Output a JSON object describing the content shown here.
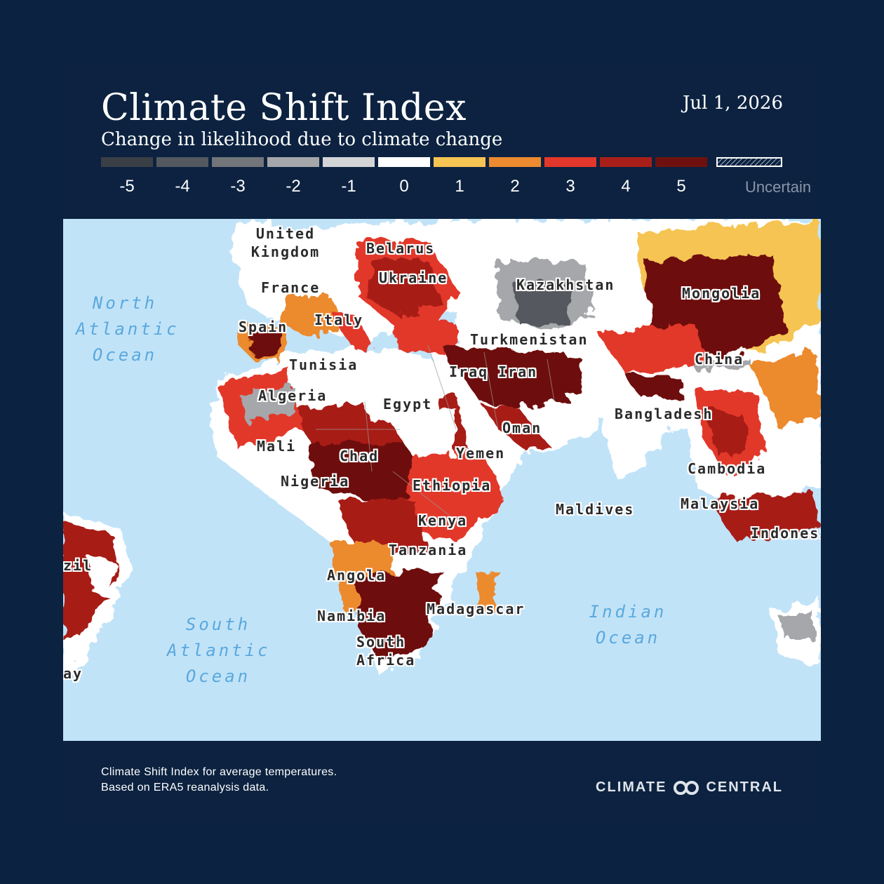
{
  "header": {
    "title": "Climate Shift Index",
    "subtitle": "Change in likelihood due to climate change",
    "date": "Jul 1, 2026"
  },
  "legend": {
    "items": [
      {
        "label": "-5",
        "color": "#3a3f46"
      },
      {
        "label": "-4",
        "color": "#54585f"
      },
      {
        "label": "-3",
        "color": "#727579"
      },
      {
        "label": "-2",
        "color": "#a5a7aa"
      },
      {
        "label": "-1",
        "color": "#d3d4d6"
      },
      {
        "label": "0",
        "color": "#ffffff"
      },
      {
        "label": "1",
        "color": "#f6c453"
      },
      {
        "label": "2",
        "color": "#ec8a2f"
      },
      {
        "label": "3",
        "color": "#e2372a"
      },
      {
        "label": "4",
        "color": "#a81f19"
      },
      {
        "label": "5",
        "color": "#6e110e"
      }
    ],
    "uncertain_label": "Uncertain"
  },
  "map": {
    "countries": [
      "United Kingdom",
      "Belarus",
      "France",
      "Ukraine",
      "Kazakhstan",
      "Mongolia",
      "Spain",
      "Italy",
      "Turkmenistan",
      "Tunisia",
      "China",
      "Iraq",
      "Iran",
      "Algeria",
      "Egypt",
      "Bangladesh",
      "Oman",
      "Mali",
      "Chad",
      "Yemen",
      "Cambodia",
      "Nigeria",
      "Ethiopia",
      "Maldives",
      "Malaysia",
      "Kenya",
      "Indonesia",
      "zil",
      "Tanzania",
      "Angola",
      "Madagascar",
      "Namibia",
      "South Africa",
      "ay"
    ],
    "oceans": {
      "north_atlantic": [
        "North",
        "Atlantic",
        "Ocean"
      ],
      "south_atlantic": [
        "South",
        "Atlantic",
        "Ocean"
      ],
      "indian": [
        "Indian",
        "Ocean"
      ]
    }
  },
  "footer": {
    "note_line1": "Climate Shift Index for average temperatures.",
    "note_line2": "Based on ERA5 reanalysis data.",
    "brand_left": "CLIMATE",
    "brand_right": "CENTRAL"
  }
}
